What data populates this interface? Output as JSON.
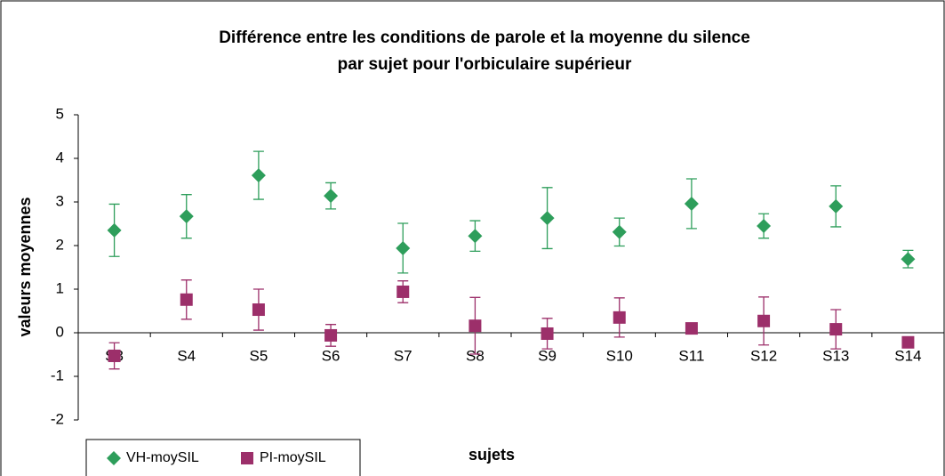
{
  "chart_data": {
    "type": "scatter",
    "title": [
      "Différence entre les conditions de parole et la moyenne du silence",
      "par sujet pour l'orbiculaire supérieur"
    ],
    "x_label": "sujets",
    "y_label": "valeurs moyennes",
    "categories": [
      "S3",
      "S4",
      "S5",
      "S6",
      "S7",
      "S8",
      "S9",
      "S10",
      "S11",
      "S12",
      "S13",
      "S14"
    ],
    "series": [
      {
        "name": "VH-moySIL",
        "color": "#2e9e5b",
        "marker": "diamond",
        "values": [
          2.35,
          2.67,
          3.61,
          3.14,
          1.94,
          2.22,
          2.63,
          2.31,
          2.96,
          2.45,
          2.9,
          1.69
        ],
        "errors": [
          0.6,
          0.5,
          0.55,
          0.3,
          0.57,
          0.35,
          0.7,
          0.32,
          0.57,
          0.28,
          0.47,
          0.2
        ]
      },
      {
        "name": "PI-moySIL",
        "color": "#9c2f6a",
        "marker": "square",
        "values": [
          -0.53,
          0.76,
          0.53,
          -0.06,
          0.94,
          0.16,
          -0.02,
          0.35,
          0.1,
          0.27,
          0.08,
          -0.22
        ],
        "errors": [
          0.3,
          0.45,
          0.47,
          0.25,
          0.25,
          0.65,
          0.35,
          0.45,
          0.12,
          0.55,
          0.45,
          0.05
        ]
      }
    ],
    "ylim": [
      -2,
      5
    ],
    "yticks": [
      -2,
      -1,
      0,
      1,
      2,
      3,
      4,
      5
    ],
    "grid": false,
    "legend": "bottom-left"
  }
}
